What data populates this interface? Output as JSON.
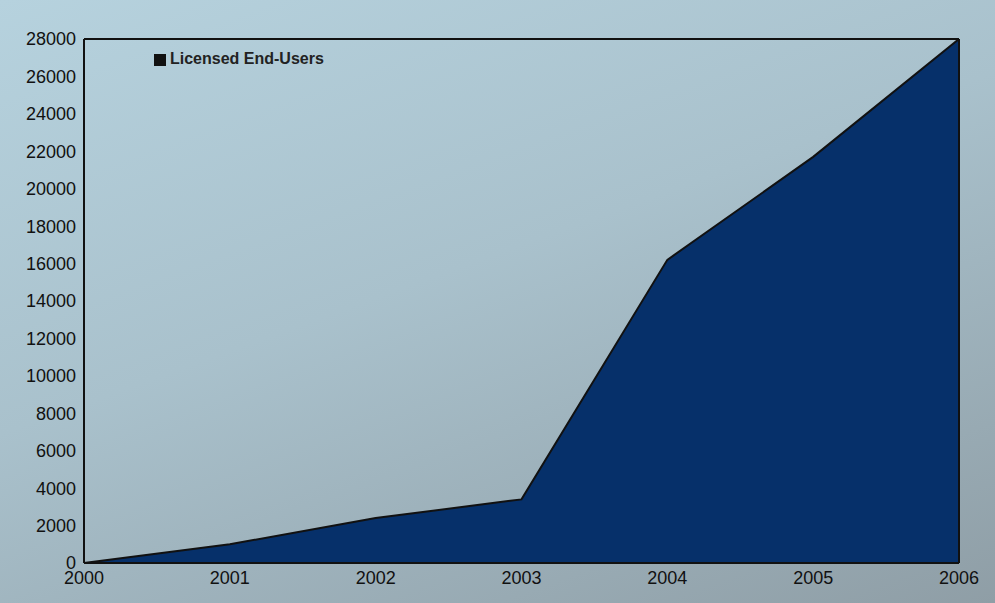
{
  "chart_data": {
    "type": "area",
    "categories": [
      "2000",
      "2001",
      "2002",
      "2003",
      "2004",
      "2005",
      "2006"
    ],
    "series": [
      {
        "name": "Licensed End-Users",
        "color": "#06306a",
        "values": [
          0,
          1000,
          2400,
          3400,
          16200,
          21700,
          28000
        ]
      }
    ],
    "ylim": [
      0,
      28000
    ],
    "yticks": [
      0,
      2000,
      4000,
      6000,
      8000,
      10000,
      12000,
      14000,
      16000,
      18000,
      20000,
      22000,
      24000,
      26000,
      28000
    ],
    "grid": false,
    "legend": "top-left"
  }
}
